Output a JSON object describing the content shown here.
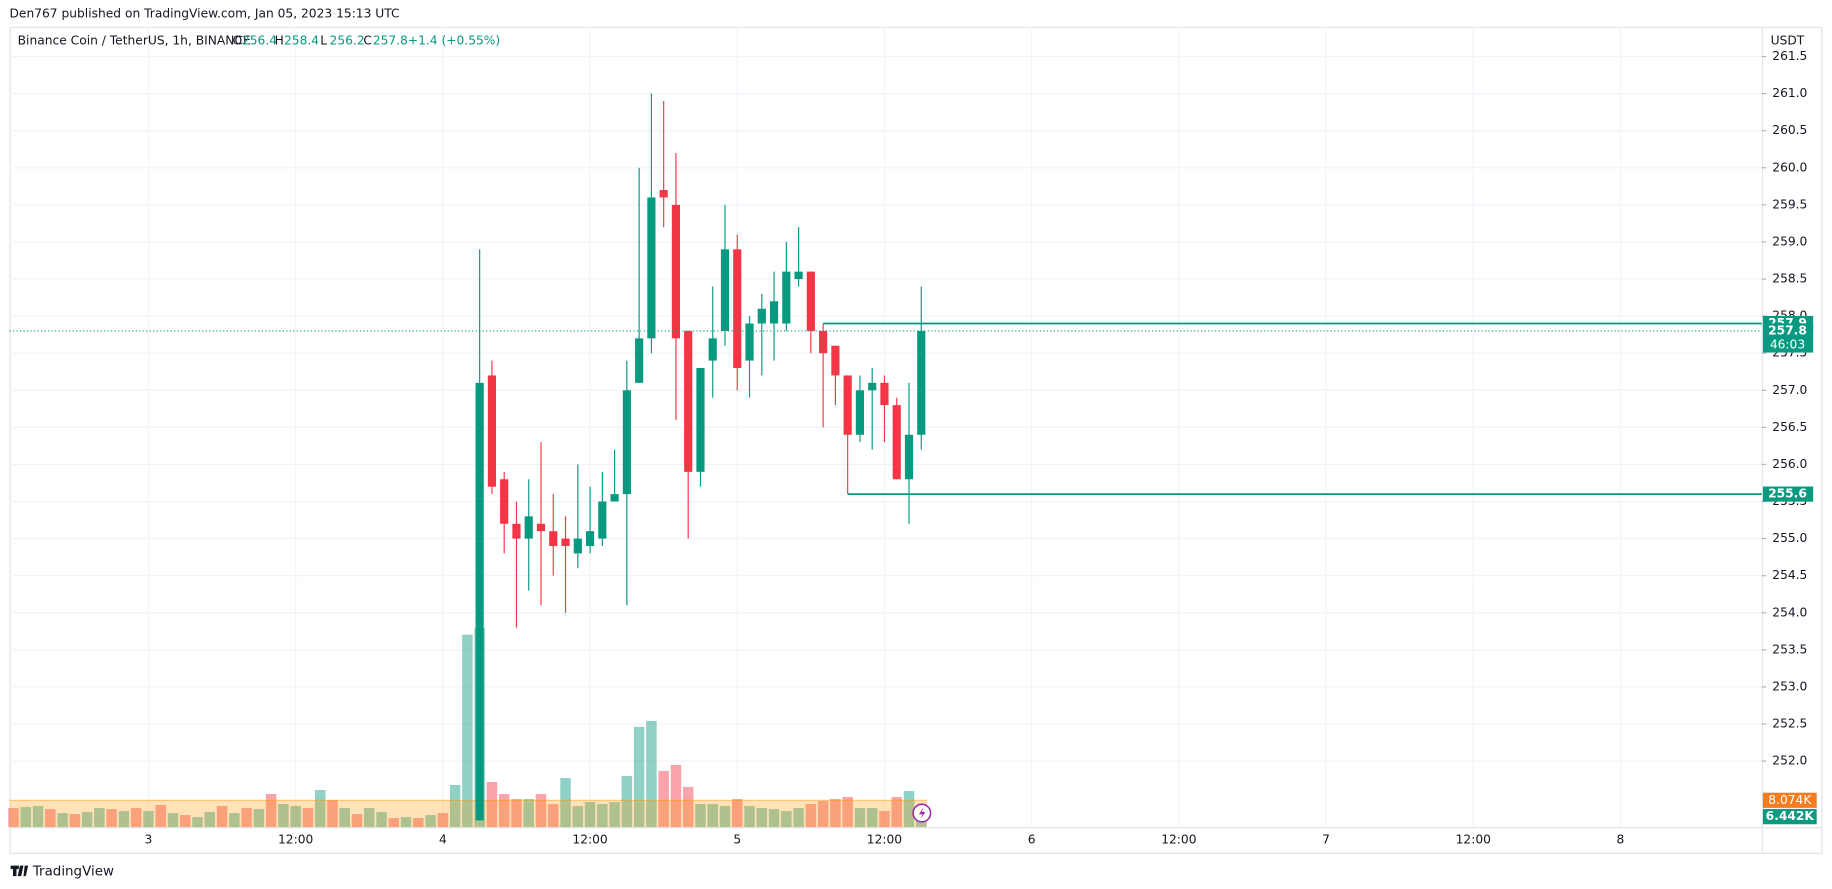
{
  "header": {
    "text": "Den767 published on TradingView.com, Jan 05, 2023 15:13 UTC"
  },
  "legend": {
    "symbol": "Binance Coin / TetherUS, 1h, BINANCE",
    "items": [
      {
        "key": "O",
        "value": 256.4
      },
      {
        "key": "H",
        "value": 258.4
      },
      {
        "key": "L",
        "value": 256.2
      },
      {
        "key": "C",
        "value": 257.8
      }
    ],
    "change": "+1.4 (+0.55%)"
  },
  "footer": {
    "brand": "TradingView"
  },
  "chart_data": {
    "type": "candlestick",
    "currency": "USDT",
    "up_color": "#089981",
    "down_color": "#f23645",
    "xlim": [
      -11.33,
      131.52
    ],
    "xticks": [
      {
        "value": 0,
        "label": "3"
      },
      {
        "value": 12,
        "label": "12:00"
      },
      {
        "value": 24,
        "label": "4"
      },
      {
        "value": 36,
        "label": "12:00"
      },
      {
        "value": 48,
        "label": "5"
      },
      {
        "value": 60,
        "label": "12:00"
      },
      {
        "value": 72,
        "label": "6"
      },
      {
        "value": 84,
        "label": "12:00"
      },
      {
        "value": 96,
        "label": "7"
      },
      {
        "value": 108,
        "label": "12:00"
      },
      {
        "value": 120,
        "label": "8"
      }
    ],
    "ylim": [
      251.11,
      261.9
    ],
    "yticks": [
      {
        "value": 252,
        "label": "252.0"
      },
      252.5,
      {
        "value": 253,
        "label": "253.0"
      },
      253.5,
      {
        "value": 254,
        "label": "254.0"
      },
      254.5,
      {
        "value": 255,
        "label": "255.0"
      },
      255.5,
      {
        "value": 256,
        "label": "256.0"
      },
      256.5,
      {
        "value": 257,
        "label": "257.0"
      },
      257.5,
      {
        "value": 258,
        "label": "258.0"
      },
      258.5,
      {
        "value": 259,
        "label": "259.0"
      },
      259.5,
      {
        "value": 260,
        "label": "260.0"
      },
      260.5,
      {
        "value": 261,
        "label": "261.0"
      },
      261.5
    ],
    "grid": true,
    "candles": {
      "x": [
        27,
        28,
        29,
        30,
        31,
        32,
        33,
        34,
        35,
        36,
        37,
        38,
        39,
        40,
        41,
        42,
        43,
        44,
        45,
        46,
        47,
        48,
        49,
        50,
        51,
        52,
        53,
        54,
        55,
        56,
        57,
        58,
        59,
        60,
        61,
        62,
        63
      ],
      "open": [
        251.2,
        257.2,
        255.8,
        255.2,
        255.0,
        255.2,
        255.1,
        255.0,
        254.8,
        254.9,
        255.0,
        255.5,
        255.6,
        257.1,
        257.7,
        259.7,
        259.5,
        257.8,
        255.9,
        257.4,
        257.8,
        258.9,
        257.4,
        257.9,
        257.9,
        257.9,
        258.5,
        258.6,
        257.8,
        257.6,
        257.2,
        256.4,
        257.0,
        257.1,
        256.8,
        255.8,
        256.4
      ],
      "high": [
        258.9,
        257.4,
        255.9,
        255.5,
        255.8,
        256.3,
        255.6,
        255.3,
        256.0,
        255.7,
        255.9,
        256.2,
        257.4,
        260.0,
        261.0,
        260.9,
        260.2,
        257.8,
        257.3,
        258.4,
        259.5,
        259.1,
        258.0,
        258.3,
        258.6,
        259.0,
        259.2,
        258.6,
        257.9,
        257.6,
        257.2,
        257.2,
        257.3,
        257.2,
        256.9,
        257.1,
        258.4
      ],
      "low": [
        251.2,
        255.6,
        254.8,
        253.8,
        254.3,
        254.1,
        254.5,
        254.0,
        254.6,
        254.8,
        254.9,
        255.5,
        254.1,
        257.1,
        257.5,
        259.2,
        256.6,
        255.0,
        255.7,
        256.9,
        257.6,
        257.0,
        256.9,
        257.2,
        257.4,
        257.8,
        258.4,
        257.5,
        256.5,
        256.8,
        255.6,
        256.3,
        256.2,
        256.3,
        255.8,
        255.2,
        256.2
      ],
      "close": [
        257.1,
        255.7,
        255.2,
        255.0,
        255.3,
        255.1,
        254.9,
        254.9,
        255.0,
        255.1,
        255.5,
        255.6,
        257.0,
        257.7,
        259.6,
        259.6,
        257.7,
        255.9,
        257.3,
        257.7,
        258.9,
        257.3,
        257.9,
        258.1,
        258.2,
        258.6,
        258.6,
        257.8,
        257.5,
        257.2,
        256.4,
        257.0,
        257.1,
        256.8,
        255.8,
        256.4,
        257.8
      ]
    },
    "volume": {
      "vlim": [
        5.4,
        30
      ],
      "up_color": "rgba(8,153,129,0.45)",
      "down_color": "rgba(242,54,69,0.45)",
      "x": [
        -11,
        -10,
        -9,
        -8,
        -7,
        -6,
        -5,
        -4,
        -3,
        -2,
        -1,
        0,
        1,
        2,
        3,
        4,
        5,
        6,
        7,
        8,
        9,
        10,
        11,
        12,
        13,
        14,
        15,
        16,
        17,
        18,
        19,
        20,
        21,
        22,
        23,
        24,
        25,
        26,
        27,
        28,
        29,
        30,
        31,
        32,
        33,
        34,
        35,
        36,
        37,
        38,
        39,
        40,
        41,
        42,
        43,
        44,
        45,
        46,
        47,
        48,
        49,
        50,
        51,
        52,
        53,
        54,
        55,
        56,
        57,
        58,
        59,
        60,
        61,
        62,
        63
      ],
      "values": [
        7.3,
        7.4,
        7.5,
        7.2,
        6.8,
        6.7,
        6.9,
        7.3,
        7.2,
        7.0,
        7.3,
        7.0,
        7.6,
        6.8,
        6.6,
        6.4,
        6.9,
        7.5,
        6.8,
        7.3,
        7.2,
        8.7,
        7.7,
        7.5,
        7.3,
        9.1,
        8.1,
        7.3,
        6.7,
        7.3,
        6.9,
        6.3,
        6.4,
        6.3,
        6.6,
        6.8,
        9.6,
        24.6,
        25.3,
        9.9,
        8.7,
        8.2,
        8.2,
        8.7,
        7.7,
        10.3,
        7.5,
        7.9,
        7.7,
        7.9,
        10.5,
        15.4,
        16.0,
        11.0,
        11.6,
        9.4,
        7.7,
        7.7,
        7.5,
        8.2,
        7.5,
        7.3,
        7.2,
        7.0,
        7.3,
        7.7,
        8.0,
        8.2,
        8.4,
        7.3,
        7.3,
        7.0,
        8.4,
        9.0,
        6.442
      ],
      "up": [
        false,
        true,
        true,
        false,
        true,
        false,
        true,
        true,
        false,
        true,
        false,
        true,
        false,
        true,
        false,
        true,
        true,
        false,
        true,
        false,
        true,
        false,
        true,
        true,
        false,
        true,
        false,
        true,
        false,
        true,
        true,
        false,
        true,
        false,
        true,
        false,
        true,
        true,
        true,
        false,
        false,
        false,
        true,
        false,
        false,
        true,
        true,
        true,
        true,
        true,
        true,
        true,
        true,
        false,
        false,
        false,
        true,
        true,
        true,
        false,
        true,
        true,
        true,
        true,
        true,
        false,
        false,
        false,
        false,
        true,
        true,
        false,
        false,
        true,
        true
      ],
      "last_label": "6.442K",
      "ma": {
        "value": 8.074,
        "label": "8.074K"
      }
    },
    "price_lines": [
      {
        "value": 257.9,
        "start": 55
      },
      {
        "value": 255.6,
        "start": 57
      }
    ],
    "last_price": 257.8,
    "countdown": "46:03"
  }
}
